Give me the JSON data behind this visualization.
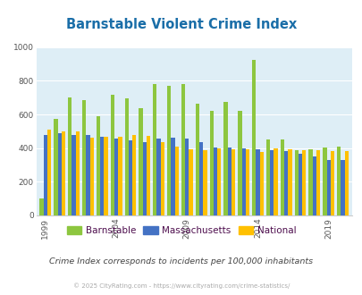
{
  "title": "Barnstable Violent Crime Index",
  "title_color": "#1a6ea8",
  "subtitle": "Crime Index corresponds to incidents per 100,000 inhabitants",
  "subtitle_color": "#444444",
  "copyright": "© 2025 CityRating.com - https://www.cityrating.com/crime-statistics/",
  "copyright_color": "#aaaaaa",
  "years": [
    1999,
    2000,
    2001,
    2002,
    2003,
    2004,
    2005,
    2006,
    2007,
    2008,
    2009,
    2010,
    2011,
    2012,
    2013,
    2014,
    2015,
    2016,
    2017,
    2018,
    2019,
    2020
  ],
  "barnstable": [
    100,
    575,
    700,
    685,
    590,
    715,
    695,
    635,
    780,
    770,
    780,
    665,
    620,
    675,
    620,
    925,
    450,
    450,
    390,
    395,
    405,
    410
  ],
  "massachusetts": [
    480,
    490,
    480,
    480,
    465,
    455,
    445,
    435,
    455,
    460,
    455,
    435,
    405,
    405,
    400,
    395,
    385,
    380,
    365,
    350,
    330,
    330
  ],
  "national": [
    510,
    500,
    500,
    460,
    465,
    465,
    480,
    475,
    435,
    410,
    395,
    390,
    400,
    395,
    395,
    375,
    400,
    395,
    385,
    385,
    380,
    380
  ],
  "barnstable_color": "#8dc63f",
  "massachusetts_color": "#4472c4",
  "national_color": "#ffc000",
  "plot_bg_color": "#deeef6",
  "outer_bg_color": "#ffffff",
  "ylim": [
    0,
    1000
  ],
  "yticks": [
    0,
    200,
    400,
    600,
    800,
    1000
  ],
  "bar_width": 0.27,
  "xtick_years": [
    1999,
    2004,
    2009,
    2014,
    2019
  ],
  "legend_labels": [
    "Barnstable",
    "Massachusetts",
    "National"
  ],
  "legend_label_color": "#4d0d4d"
}
